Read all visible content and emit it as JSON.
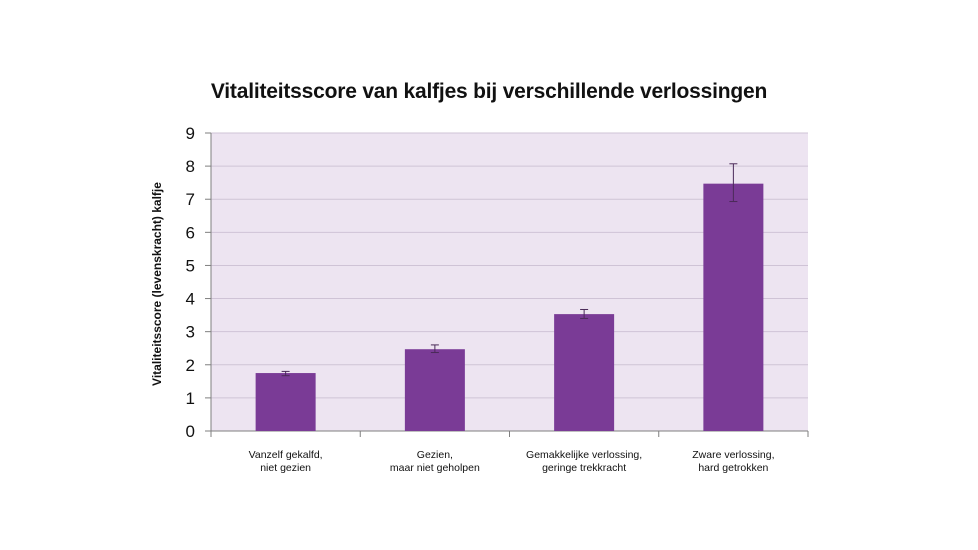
{
  "chart_data": {
    "type": "bar",
    "title": "Vitaliteitsscore van kalfjes bij verschillende verlossingen",
    "ylabel": "Vitaliteitsscore (levenskracht) kalfje",
    "xlabel": "",
    "ylim": [
      0,
      9
    ],
    "yticks": [
      "0",
      "1",
      "2",
      "3",
      "4",
      "5",
      "6",
      "7",
      "8",
      "9"
    ],
    "grid": true,
    "categories": [
      [
        "Vanzelf gekalfd,",
        "niet gezien"
      ],
      [
        "Gezien,",
        "maar niet geholpen"
      ],
      [
        "Gemakkelijke verlossing,",
        "geringe trekkracht"
      ],
      [
        "Zware verlossing,",
        "hard getrokken"
      ]
    ],
    "values": [
      1.75,
      2.47,
      3.53,
      7.47
    ],
    "error_low": [
      1.67,
      2.37,
      3.4,
      6.93
    ],
    "error_high": [
      1.8,
      2.6,
      3.67,
      8.07
    ],
    "colors": {
      "bar": "#7a3b96",
      "plot_background": "#ede4f1",
      "grid": "#cfc3d6",
      "axis": "#7f7f7f",
      "error_bar": "#4a2a58"
    }
  }
}
